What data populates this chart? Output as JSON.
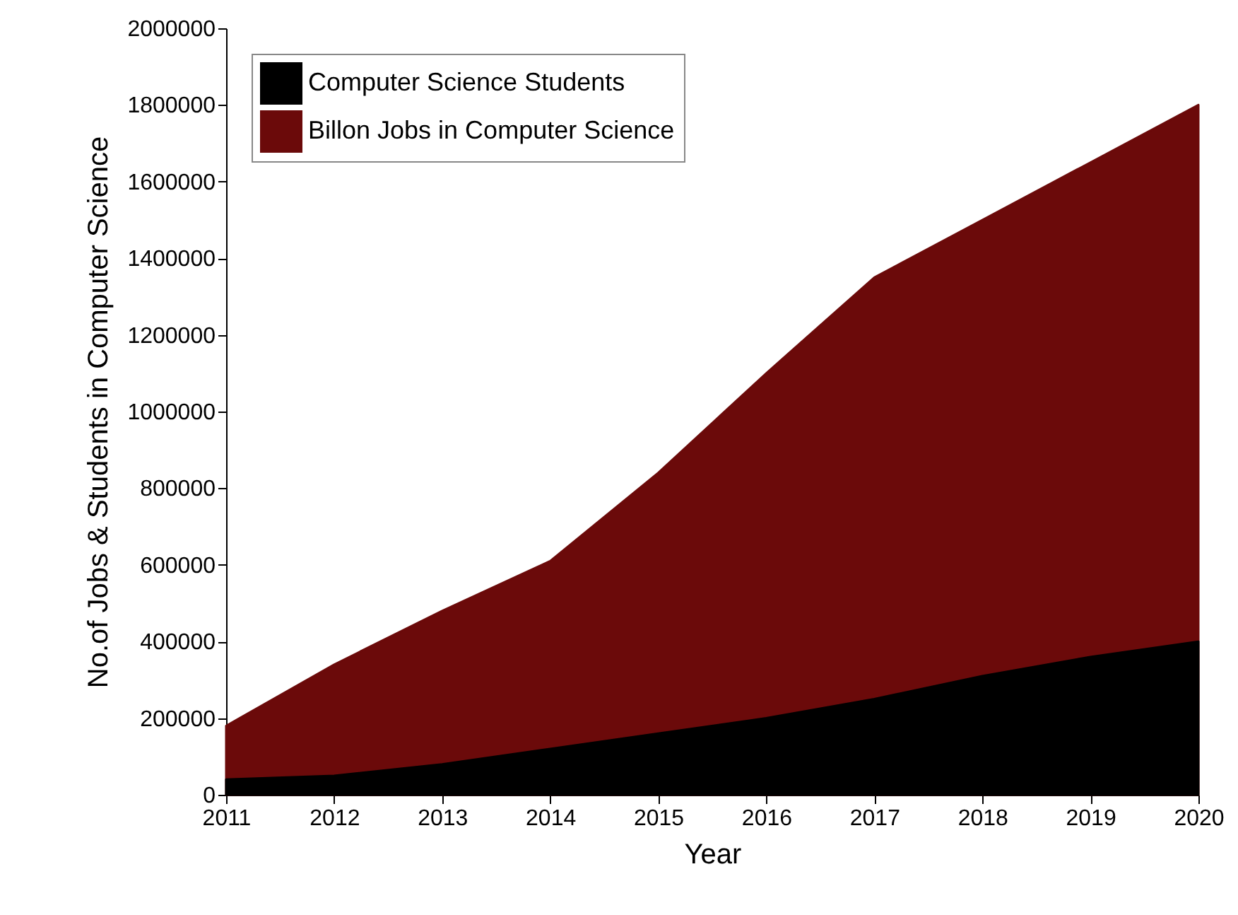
{
  "chart_data": {
    "type": "area",
    "xlabel": "Year",
    "ylabel": "No.of Jobs & Students in Computer Science",
    "x": [
      2011,
      2012,
      2013,
      2014,
      2015,
      2016,
      2017,
      2018,
      2019,
      2020
    ],
    "series": [
      {
        "name": "Computer Science Students",
        "color": "#000000",
        "values": [
          40000,
          50000,
          80000,
          120000,
          160000,
          200000,
          250000,
          310000,
          360000,
          400000
        ]
      },
      {
        "name": "Billon Jobs in Computer Science",
        "color": "#6b0a0a",
        "values": [
          180000,
          340000,
          480000,
          610000,
          840000,
          1100000,
          1350000,
          1500000,
          1650000,
          1800000
        ]
      }
    ],
    "xlim": [
      2011,
      2020
    ],
    "xticks": [
      2011,
      2012,
      2013,
      2014,
      2015,
      2016,
      2017,
      2018,
      2019,
      2020
    ],
    "ylim": [
      0,
      2000000
    ],
    "yticks": [
      0,
      200000,
      400000,
      600000,
      800000,
      1000000,
      1200000,
      1400000,
      1600000,
      1800000,
      2000000
    ],
    "legend": "top left",
    "grid": false
  }
}
